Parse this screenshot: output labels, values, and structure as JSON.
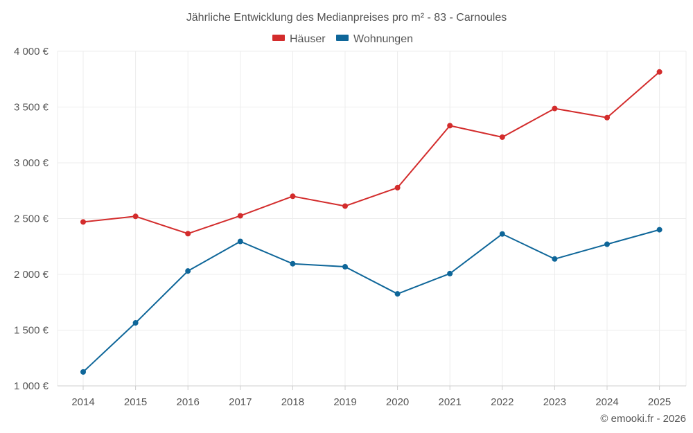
{
  "chart_data": {
    "type": "line",
    "title": "Jährliche Entwicklung des Medianpreises pro m² - 83 - Carnoules",
    "categories": [
      "2014",
      "2015",
      "2016",
      "2017",
      "2018",
      "2019",
      "2020",
      "2021",
      "2022",
      "2023",
      "2024",
      "2025"
    ],
    "series": [
      {
        "name": "Häuser",
        "color": "#d32c2c",
        "values": [
          2470,
          2520,
          2365,
          2525,
          2700,
          2612,
          2777,
          3333,
          3230,
          3487,
          3405,
          3815
        ]
      },
      {
        "name": "Wohnungen",
        "color": "#0e6699",
        "values": [
          1125,
          1565,
          2030,
          2295,
          2095,
          2068,
          1825,
          2007,
          2362,
          2138,
          2270,
          2400
        ]
      }
    ],
    "ylim": [
      1000,
      4000
    ],
    "yticks": [
      1000,
      1500,
      2000,
      2500,
      3000,
      3500,
      4000
    ],
    "ytick_labels": [
      "1 000 €",
      "1 500 €",
      "2 000 €",
      "2 500 €",
      "3 000 €",
      "3 500 €",
      "4 000 €"
    ],
    "xlabel": "",
    "ylabel": "",
    "grid": true,
    "legend_position": "top-center"
  },
  "credit": "© emooki.fr - 2026"
}
